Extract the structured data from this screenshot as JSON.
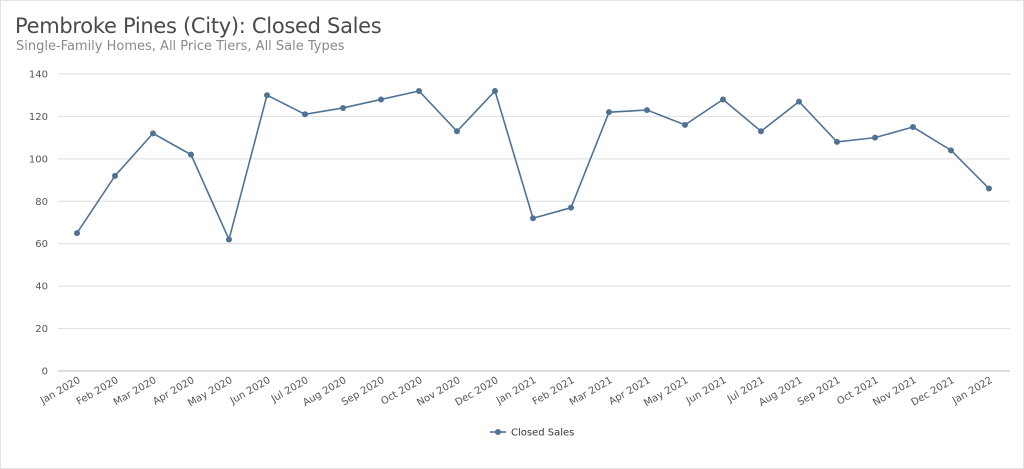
{
  "chart_data": {
    "type": "line",
    "title": "Pembroke Pines (City): Closed Sales",
    "subtitle": "Single-Family Homes, All Price Tiers, All Sale Types",
    "xlabel": "",
    "ylabel": "",
    "ylim": [
      0,
      140
    ],
    "yticks": [
      0,
      20,
      40,
      60,
      80,
      100,
      120,
      140
    ],
    "grid": true,
    "legend_position": "bottom",
    "categories": [
      "Jan 2020",
      "Feb 2020",
      "Mar 2020",
      "Apr 2020",
      "May 2020",
      "Jun 2020",
      "Jul 2020",
      "Aug 2020",
      "Sep 2020",
      "Oct 2020",
      "Nov 2020",
      "Dec 2020",
      "Jan 2021",
      "Feb 2021",
      "Mar 2021",
      "Apr 2021",
      "May 2021",
      "Jun 2021",
      "Jul 2021",
      "Aug 2021",
      "Sep 2021",
      "Oct 2021",
      "Nov 2021",
      "Dec 2021",
      "Jan 2022"
    ],
    "series": [
      {
        "name": "Closed Sales",
        "color": "#4f7394",
        "values": [
          65,
          92,
          112,
          102,
          62,
          130,
          121,
          124,
          128,
          132,
          113,
          132,
          72,
          77,
          122,
          123,
          116,
          128,
          113,
          127,
          108,
          110,
          115,
          104,
          86
        ]
      }
    ]
  }
}
